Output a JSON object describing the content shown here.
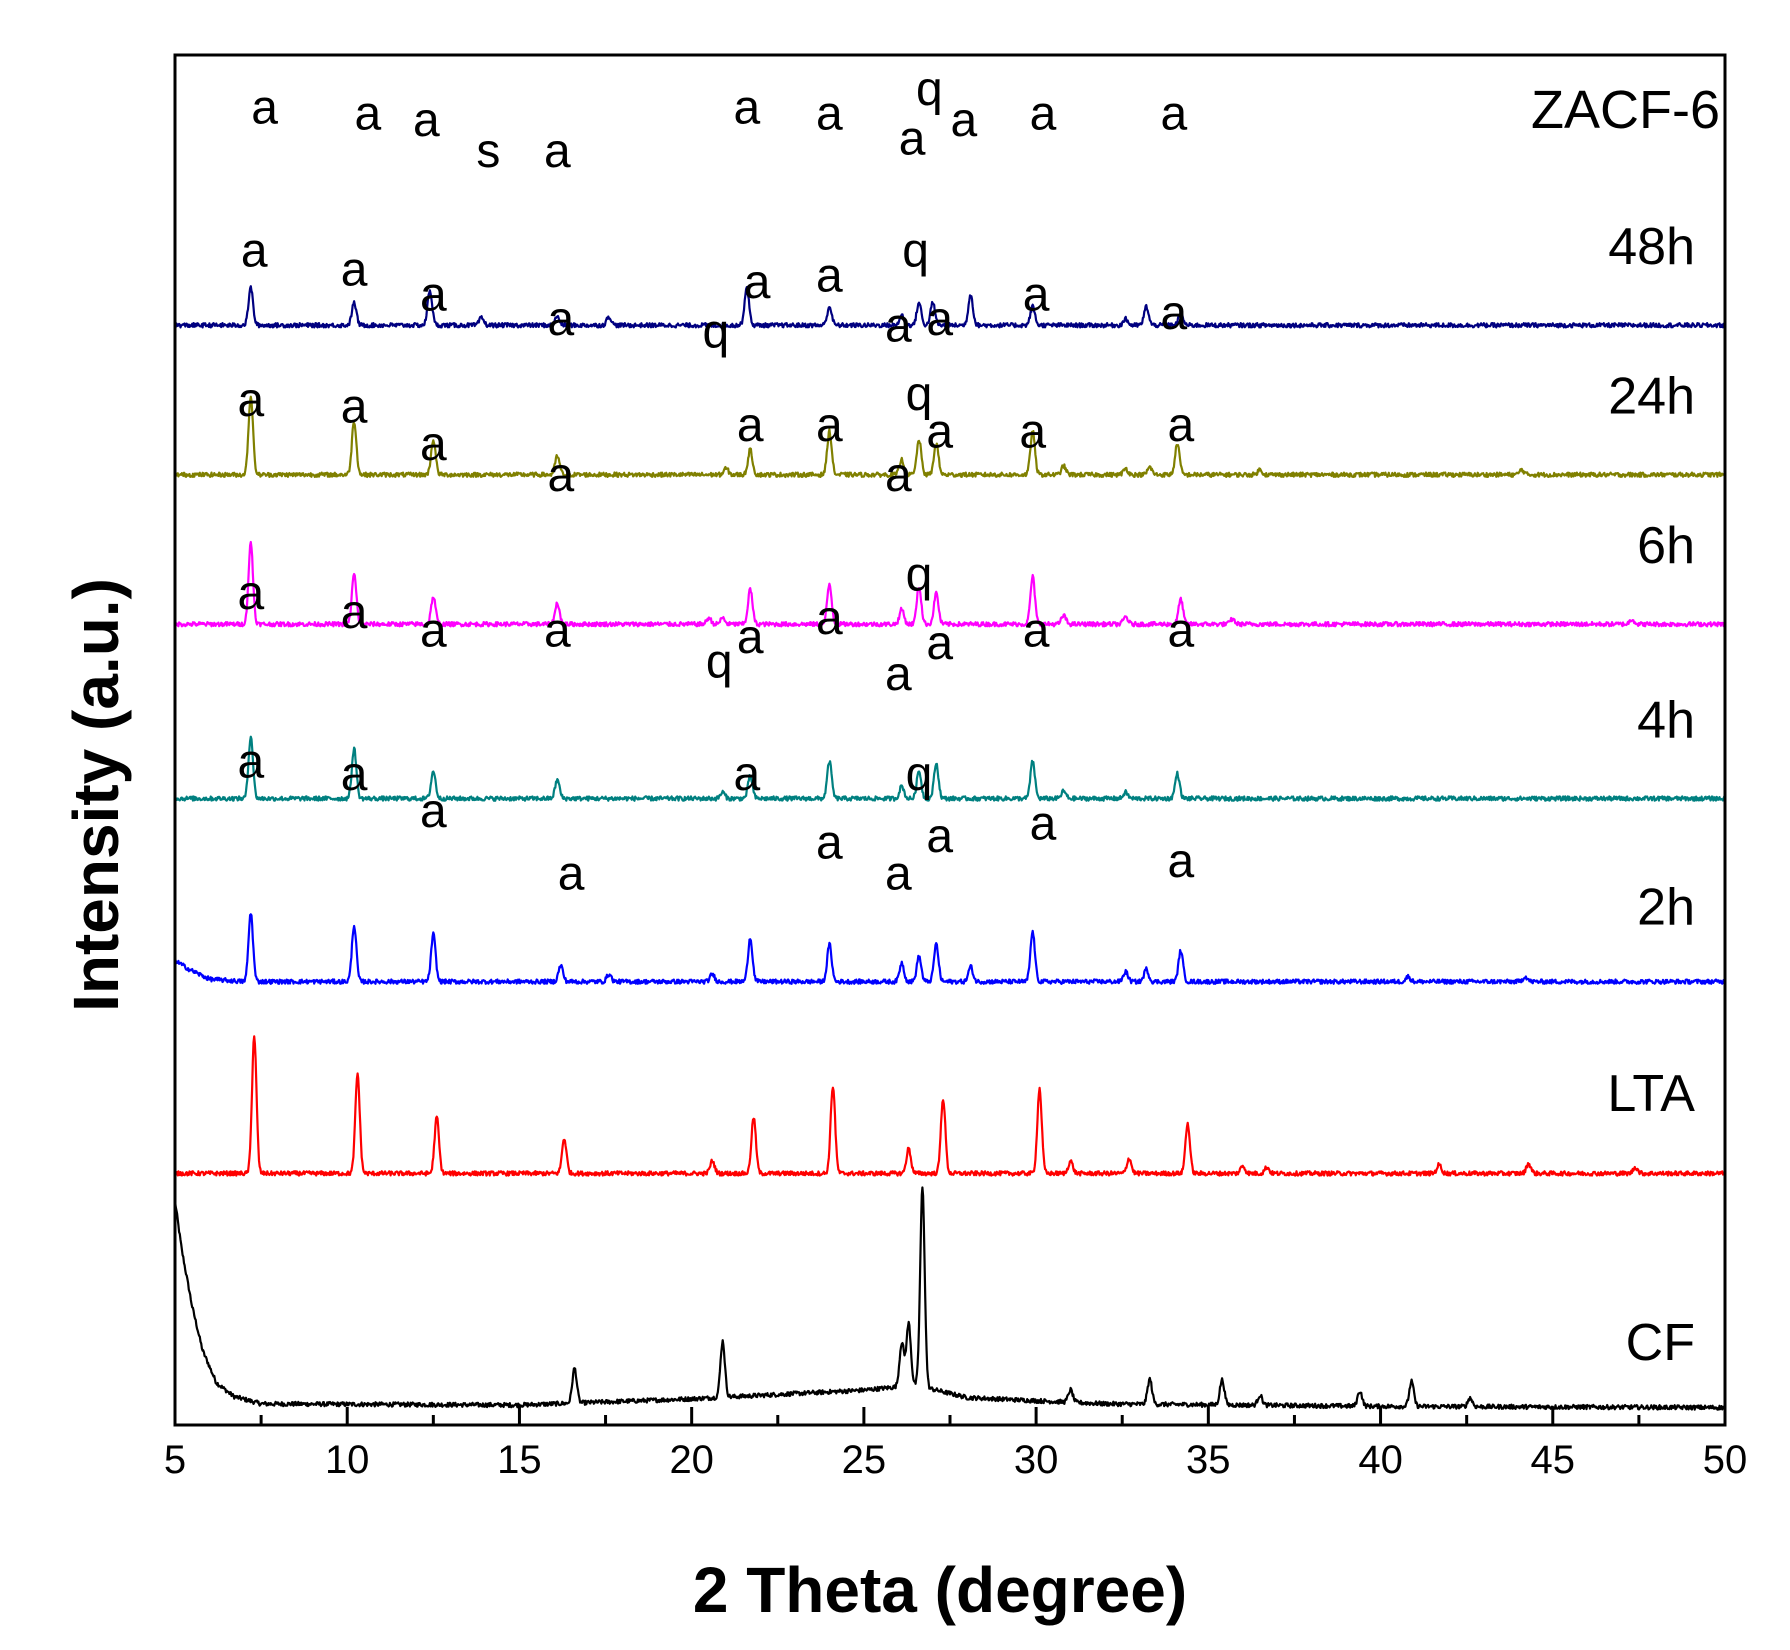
{
  "chart_data": {
    "type": "line",
    "title": "ZACF-6",
    "xlabel": "2 Theta (degree)",
    "ylabel": "Intensity (a.u.)",
    "xlim": [
      5,
      50
    ],
    "ylim": [
      0,
      110
    ],
    "x_ticks": [
      "5",
      "10",
      "15",
      "20",
      "25",
      "30",
      "35",
      "40",
      "45",
      "50"
    ],
    "grid": false,
    "series": [
      {
        "name": "CF",
        "color": "#000000",
        "offset": 0,
        "baseline": 1.0,
        "background": [
          [
            5.0,
            17
          ],
          [
            5.2,
            13
          ],
          [
            5.5,
            8.5
          ],
          [
            5.8,
            5
          ],
          [
            6.2,
            2.4
          ],
          [
            6.7,
            1.3
          ],
          [
            7.5,
            0.7
          ],
          [
            15,
            0.6
          ],
          [
            20,
            1.1
          ],
          [
            25,
            1.8
          ],
          [
            26.5,
            2.2
          ],
          [
            28,
            1.2
          ],
          [
            32,
            0.7
          ],
          [
            40,
            0.5
          ],
          [
            50,
            0.4
          ]
        ],
        "peaks": [
          [
            16.6,
            2.8
          ],
          [
            20.9,
            4.5
          ],
          [
            26.1,
            3.5
          ],
          [
            26.3,
            5
          ],
          [
            26.7,
            16
          ],
          [
            31.0,
            1.0
          ],
          [
            33.3,
            2.0
          ],
          [
            35.4,
            2.0
          ],
          [
            36.5,
            0.8
          ],
          [
            39.4,
            1.2
          ],
          [
            40.9,
            2.0
          ],
          [
            42.6,
            0.7
          ]
        ],
        "labels": []
      },
      {
        "name": "LTA",
        "color": "#ff0000",
        "offset": 20,
        "baseline": 0.2,
        "background": [],
        "peaks": [
          [
            7.3,
            11
          ],
          [
            10.3,
            8
          ],
          [
            12.6,
            4.5
          ],
          [
            16.3,
            2.8
          ],
          [
            20.6,
            1.0
          ],
          [
            21.8,
            4.5
          ],
          [
            24.1,
            7
          ],
          [
            26.3,
            2.0
          ],
          [
            27.3,
            6
          ],
          [
            30.1,
            6.8
          ],
          [
            31.0,
            1.0
          ],
          [
            32.7,
            1.2
          ],
          [
            34.4,
            4
          ],
          [
            36.0,
            0.6
          ],
          [
            36.7,
            0.5
          ],
          [
            41.7,
            0.7
          ],
          [
            44.3,
            0.8
          ],
          [
            47.4,
            0.5
          ]
        ],
        "labels": []
      },
      {
        "name": "2h",
        "color": "#0000ff",
        "offset": 35,
        "baseline": 0.3,
        "background": [
          [
            5.0,
            2.0
          ],
          [
            5.4,
            1.3
          ],
          [
            6.0,
            0.5
          ],
          [
            7.0,
            0.3
          ],
          [
            50,
            0.3
          ]
        ],
        "peaks": [
          [
            7.2,
            5.5
          ],
          [
            10.2,
            4.5
          ],
          [
            12.5,
            3.8
          ],
          [
            16.2,
            1.3
          ],
          [
            17.6,
            0.6
          ],
          [
            20.6,
            0.6
          ],
          [
            21.7,
            3.5
          ],
          [
            24.0,
            3.0
          ],
          [
            26.1,
            1.5
          ],
          [
            26.6,
            2.0
          ],
          [
            27.1,
            3.0
          ],
          [
            28.1,
            1.2
          ],
          [
            29.9,
            4.0
          ],
          [
            32.6,
            0.8
          ],
          [
            33.2,
            1.0
          ],
          [
            34.2,
            2.5
          ],
          [
            40.8,
            0.4
          ],
          [
            44.2,
            0.4
          ]
        ],
        "labels": [
          {
            "text": "a",
            "x": 7.2,
            "y": 52
          },
          {
            "text": "a",
            "x": 10.2,
            "y": 51
          },
          {
            "text": "a",
            "x": 12.5,
            "y": 48
          },
          {
            "text": "a",
            "x": 16.5,
            "y": 43
          },
          {
            "text": "a",
            "x": 21.6,
            "y": 51
          },
          {
            "text": "a",
            "x": 24.0,
            "y": 45.5
          },
          {
            "text": "a",
            "x": 26.0,
            "y": 43
          },
          {
            "text": "q",
            "x": 26.6,
            "y": 51
          },
          {
            "text": "a",
            "x": 27.2,
            "y": 46
          },
          {
            "text": "a",
            "x": 30.2,
            "y": 47
          },
          {
            "text": "a",
            "x": 34.2,
            "y": 44
          }
        ]
      },
      {
        "name": "4h",
        "color": "#008080",
        "offset": 50,
        "baseline": 0.3,
        "background": [],
        "peaks": [
          [
            7.2,
            5.0
          ],
          [
            10.2,
            4.0
          ],
          [
            12.5,
            2.2
          ],
          [
            16.1,
            1.5
          ],
          [
            20.9,
            0.5
          ],
          [
            21.7,
            1.8
          ],
          [
            24.0,
            3.0
          ],
          [
            26.1,
            1.0
          ],
          [
            26.6,
            2.2
          ],
          [
            27.1,
            2.8
          ],
          [
            29.9,
            3.0
          ],
          [
            30.8,
            0.6
          ],
          [
            32.6,
            0.5
          ],
          [
            34.1,
            2.0
          ]
        ],
        "labels": [
          {
            "text": "a",
            "x": 7.2,
            "y": 65.5
          },
          {
            "text": "a",
            "x": 10.2,
            "y": 64
          },
          {
            "text": "a",
            "x": 12.5,
            "y": 62.5
          },
          {
            "text": "a",
            "x": 16.1,
            "y": 62.5
          },
          {
            "text": "q",
            "x": 20.8,
            "y": 60
          },
          {
            "text": "a",
            "x": 21.7,
            "y": 62
          },
          {
            "text": "a",
            "x": 24.0,
            "y": 63.5
          },
          {
            "text": "a",
            "x": 26.0,
            "y": 59
          },
          {
            "text": "q",
            "x": 26.6,
            "y": 67
          },
          {
            "text": "a",
            "x": 27.2,
            "y": 61.5
          },
          {
            "text": "a",
            "x": 30.0,
            "y": 62.5
          },
          {
            "text": "a",
            "x": 34.2,
            "y": 62.5
          }
        ]
      },
      {
        "name": "6h",
        "color": "#ff00ff",
        "offset": 64,
        "baseline": 0.3,
        "background": [],
        "peaks": [
          [
            7.2,
            6.5
          ],
          [
            10.2,
            4.0
          ],
          [
            12.5,
            2.2
          ],
          [
            16.1,
            1.7
          ],
          [
            20.5,
            0.5
          ],
          [
            20.9,
            0.5
          ],
          [
            21.7,
            2.8
          ],
          [
            24.0,
            3.2
          ],
          [
            26.1,
            1.2
          ],
          [
            26.6,
            3.0
          ],
          [
            27.1,
            2.5
          ],
          [
            29.9,
            3.8
          ],
          [
            30.8,
            0.7
          ],
          [
            32.6,
            0.6
          ],
          [
            34.2,
            2.0
          ],
          [
            35.7,
            0.4
          ],
          [
            47.3,
            0.4
          ]
        ],
        "labels": [
          {
            "text": "a",
            "x": 7.2,
            "y": 81
          },
          {
            "text": "a",
            "x": 10.2,
            "y": 80.5
          },
          {
            "text": "a",
            "x": 12.5,
            "y": 77.5
          },
          {
            "text": "a",
            "x": 16.2,
            "y": 75
          },
          {
            "text": "a",
            "x": 21.7,
            "y": 79
          },
          {
            "text": "a",
            "x": 24.0,
            "y": 79
          },
          {
            "text": "a",
            "x": 26.0,
            "y": 75
          },
          {
            "text": "q",
            "x": 26.6,
            "y": 81.5
          },
          {
            "text": "a",
            "x": 27.2,
            "y": 78.5
          },
          {
            "text": "a",
            "x": 29.9,
            "y": 78.5
          },
          {
            "text": "a",
            "x": 34.2,
            "y": 79
          }
        ]
      },
      {
        "name": "24h",
        "color": "#808000",
        "offset": 76,
        "baseline": 0.3,
        "background": [],
        "peaks": [
          [
            7.2,
            6.3
          ],
          [
            10.2,
            4.3
          ],
          [
            12.5,
            2.8
          ],
          [
            16.1,
            1.5
          ],
          [
            21.0,
            0.5
          ],
          [
            21.7,
            2.0
          ],
          [
            24.0,
            3.5
          ],
          [
            26.1,
            1.2
          ],
          [
            26.6,
            2.8
          ],
          [
            27.1,
            2.5
          ],
          [
            29.9,
            3.5
          ],
          [
            30.8,
            0.7
          ],
          [
            32.6,
            0.5
          ],
          [
            33.3,
            0.6
          ],
          [
            34.1,
            2.5
          ],
          [
            36.5,
            0.4
          ],
          [
            44.1,
            0.4
          ]
        ],
        "labels": [
          {
            "text": "a",
            "x": 7.3,
            "y": 93
          },
          {
            "text": "a",
            "x": 10.2,
            "y": 91.5
          },
          {
            "text": "a",
            "x": 12.5,
            "y": 89.5
          },
          {
            "text": "a",
            "x": 16.2,
            "y": 87.5
          },
          {
            "text": "q",
            "x": 20.7,
            "y": 86.5
          },
          {
            "text": "a",
            "x": 21.9,
            "y": 90.5
          },
          {
            "text": "a",
            "x": 24.0,
            "y": 91
          },
          {
            "text": "a",
            "x": 26.0,
            "y": 87
          },
          {
            "text": "q",
            "x": 26.5,
            "y": 93
          },
          {
            "text": "a",
            "x": 27.2,
            "y": 87.5
          },
          {
            "text": "a",
            "x": 30.0,
            "y": 89.5
          },
          {
            "text": "a",
            "x": 34.0,
            "y": 88
          }
        ]
      },
      {
        "name": "48h",
        "color": "#000080",
        "offset": 88,
        "baseline": 0.3,
        "background": [],
        "peaks": [
          [
            7.2,
            3.0
          ],
          [
            10.2,
            1.8
          ],
          [
            12.4,
            2.8
          ],
          [
            13.9,
            0.6
          ],
          [
            16.1,
            0.7
          ],
          [
            17.6,
            0.7
          ],
          [
            21.6,
            3.0
          ],
          [
            24.0,
            1.5
          ],
          [
            26.1,
            0.8
          ],
          [
            26.6,
            1.8
          ],
          [
            27.0,
            1.8
          ],
          [
            28.1,
            2.5
          ],
          [
            29.9,
            1.5
          ],
          [
            32.6,
            0.5
          ],
          [
            33.2,
            1.5
          ],
          [
            34.2,
            1.0
          ]
        ],
        "labels": [
          {
            "text": "a",
            "x": 7.6,
            "y": 104.5
          },
          {
            "text": "a",
            "x": 10.6,
            "y": 104
          },
          {
            "text": "a",
            "x": 12.3,
            "y": 103.5
          },
          {
            "text": "s",
            "x": 14.1,
            "y": 101
          },
          {
            "text": "a",
            "x": 16.1,
            "y": 101
          },
          {
            "text": "a",
            "x": 21.6,
            "y": 104.5
          },
          {
            "text": "a",
            "x": 24.0,
            "y": 104
          },
          {
            "text": "a",
            "x": 26.4,
            "y": 102
          },
          {
            "text": "q",
            "x": 26.9,
            "y": 106
          },
          {
            "text": "a",
            "x": 27.9,
            "y": 103.5
          },
          {
            "text": "a",
            "x": 30.2,
            "y": 104
          },
          {
            "text": "a",
            "x": 34.0,
            "y": 104
          }
        ]
      }
    ]
  }
}
